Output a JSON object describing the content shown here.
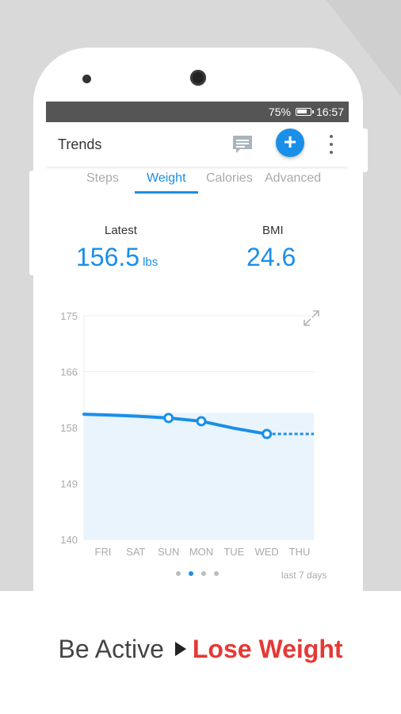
{
  "status_bar": {
    "battery": "75%",
    "time": "16:57"
  },
  "appbar": {
    "title": "Trends",
    "icons": [
      "message-icon",
      "add-icon",
      "more-vert-icon"
    ]
  },
  "tabs": [
    {
      "label": "Steps",
      "active": false
    },
    {
      "label": "Weight",
      "active": true
    },
    {
      "label": "Calories",
      "active": false
    },
    {
      "label": "Advanced",
      "active": false
    }
  ],
  "stats": {
    "latest": {
      "label": "Latest",
      "value": "156.5",
      "unit": "lbs"
    },
    "bmi": {
      "label": "BMI",
      "value": "24.6"
    }
  },
  "chart_data": {
    "type": "line",
    "categories": [
      "FRI",
      "SAT",
      "SUN",
      "MON",
      "TUE",
      "WED",
      "THU"
    ],
    "yticks": [
      "175",
      "166",
      "158",
      "149",
      "140"
    ],
    "ylim": [
      140,
      175
    ],
    "series": [
      {
        "values": [
          159.5,
          159.3,
          159.0,
          158.5,
          157.4,
          156.5,
          null
        ]
      }
    ],
    "markers": [
      "SUN",
      "MON",
      "WED"
    ],
    "projection": {
      "from": "WED",
      "to": "THU",
      "value": 156.5
    },
    "grid": true,
    "color": "#1a8fe8",
    "fill": "#eaf4fc"
  },
  "pager": {
    "count": 4,
    "active": 1
  },
  "range_label": "last 7 days",
  "tagline": {
    "part1": "Be Active",
    "part2": "Lose Weight"
  },
  "colors": {
    "accent": "#1a8fe8",
    "highlight": "#e53935"
  }
}
